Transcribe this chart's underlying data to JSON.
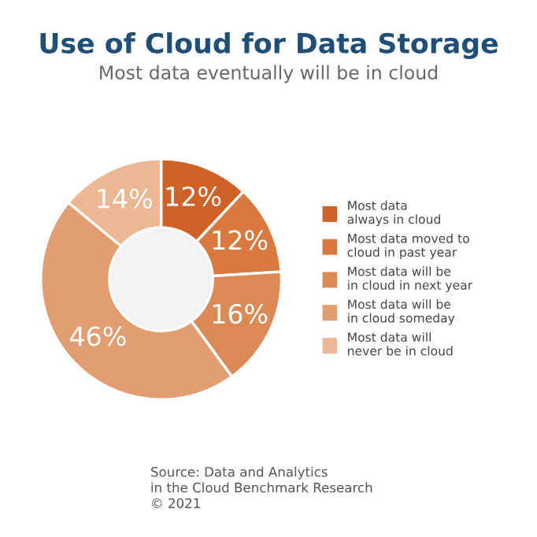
{
  "chart_data": {
    "type": "donut",
    "title": "Use of Cloud for Data Storage",
    "subtitle": "Most data eventually will be in cloud",
    "categories": [
      "Most data\nalways in cloud",
      "Most data moved to\ncloud in past year",
      "Most data will be\nin cloud in next year",
      "Most data will be\nin cloud someday",
      "Most data will\nnever be in cloud"
    ],
    "values": [
      12,
      12,
      16,
      46,
      14
    ],
    "colors": [
      "#d06228",
      "#d87a40",
      "#dc8a55",
      "#e29d70",
      "#ebb893"
    ],
    "value_labels": [
      "12%",
      "12%",
      "16%",
      "46%",
      "14%"
    ],
    "legend": "right",
    "annotations": [
      "Source: Data and Analytics\nin the Cloud Benchmark Research\n© 2021"
    ]
  }
}
